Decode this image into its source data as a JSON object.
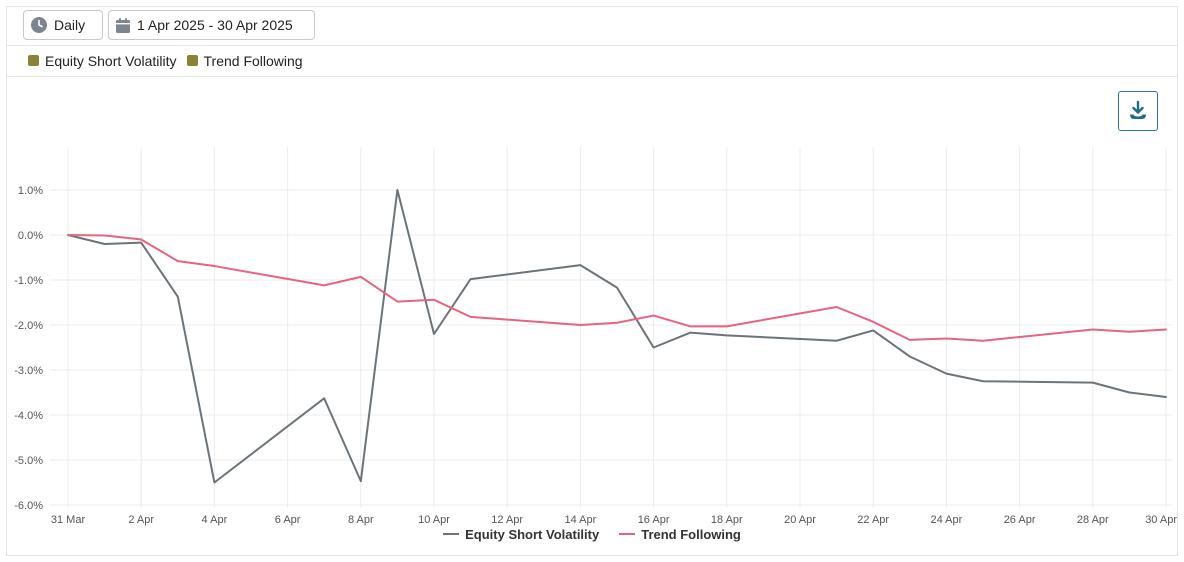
{
  "toolbar": {
    "frequency_label": "Daily",
    "date_range_label": "1 Apr 2025 - 30 Apr 2025"
  },
  "legend_top": {
    "items": [
      "Equity Short Volatility",
      "Trend Following"
    ],
    "swatch_color": "#8b8237"
  },
  "icons": {
    "frequency": "clock-icon",
    "date_range": "calendar-icon",
    "download": "download-icon"
  },
  "chart_data": {
    "type": "line",
    "x_labels": [
      "31 Mar",
      "1 Apr",
      "2 Apr",
      "3 Apr",
      "4 Apr",
      "7 Apr",
      "8 Apr",
      "9 Apr",
      "10 Apr",
      "11 Apr",
      "14 Apr",
      "15 Apr",
      "16 Apr",
      "17 Apr",
      "18 Apr",
      "21 Apr",
      "22 Apr",
      "23 Apr",
      "24 Apr",
      "25 Apr",
      "28 Apr",
      "29 Apr",
      "30 Apr"
    ],
    "x_day_index": [
      0,
      1,
      2,
      3,
      4,
      7,
      8,
      9,
      10,
      11,
      14,
      15,
      16,
      17,
      18,
      21,
      22,
      23,
      24,
      25,
      28,
      29,
      30
    ],
    "x_ticks": [
      "31 Mar",
      "2 Apr",
      "4 Apr",
      "6 Apr",
      "8 Apr",
      "10 Apr",
      "12 Apr",
      "14 Apr",
      "16 Apr",
      "18 Apr",
      "20 Apr",
      "22 Apr",
      "24 Apr",
      "26 Apr",
      "28 Apr",
      "30 Apr"
    ],
    "x_tick_day_index": [
      0,
      2,
      4,
      6,
      8,
      10,
      12,
      14,
      16,
      18,
      20,
      22,
      24,
      26,
      28,
      30
    ],
    "y_ticks": [
      1,
      0,
      -1,
      -2,
      -3,
      -4,
      -5,
      -6
    ],
    "y_tick_labels": [
      "1.0%",
      "0.0%",
      "-1.0%",
      "-2.0%",
      "-3.0%",
      "-4.0%",
      "-5.0%",
      "-6.0%"
    ],
    "ylim": [
      -6,
      1
    ],
    "grid": true,
    "legend_position": "bottom-center",
    "series": [
      {
        "name": "Equity Short Volatility",
        "color": "#6b747a",
        "values": [
          0.0,
          -0.2,
          -0.17,
          -1.37,
          -5.5,
          -3.63,
          -5.47,
          1.0,
          -2.2,
          -0.98,
          -0.67,
          -1.17,
          -2.5,
          -2.17,
          -2.23,
          -2.35,
          -2.12,
          -2.7,
          -3.08,
          -3.25,
          -3.28,
          -3.5,
          -3.6
        ]
      },
      {
        "name": "Trend Following",
        "color": "#e8647e",
        "values": [
          0.0,
          -0.01,
          -0.1,
          -0.58,
          -0.69,
          -1.12,
          -0.93,
          -1.48,
          -1.44,
          -1.82,
          -2.0,
          -1.95,
          -1.79,
          -2.03,
          -2.03,
          -1.6,
          -1.93,
          -2.33,
          -2.3,
          -2.35,
          -2.1,
          -2.15,
          -2.1
        ]
      }
    ]
  }
}
